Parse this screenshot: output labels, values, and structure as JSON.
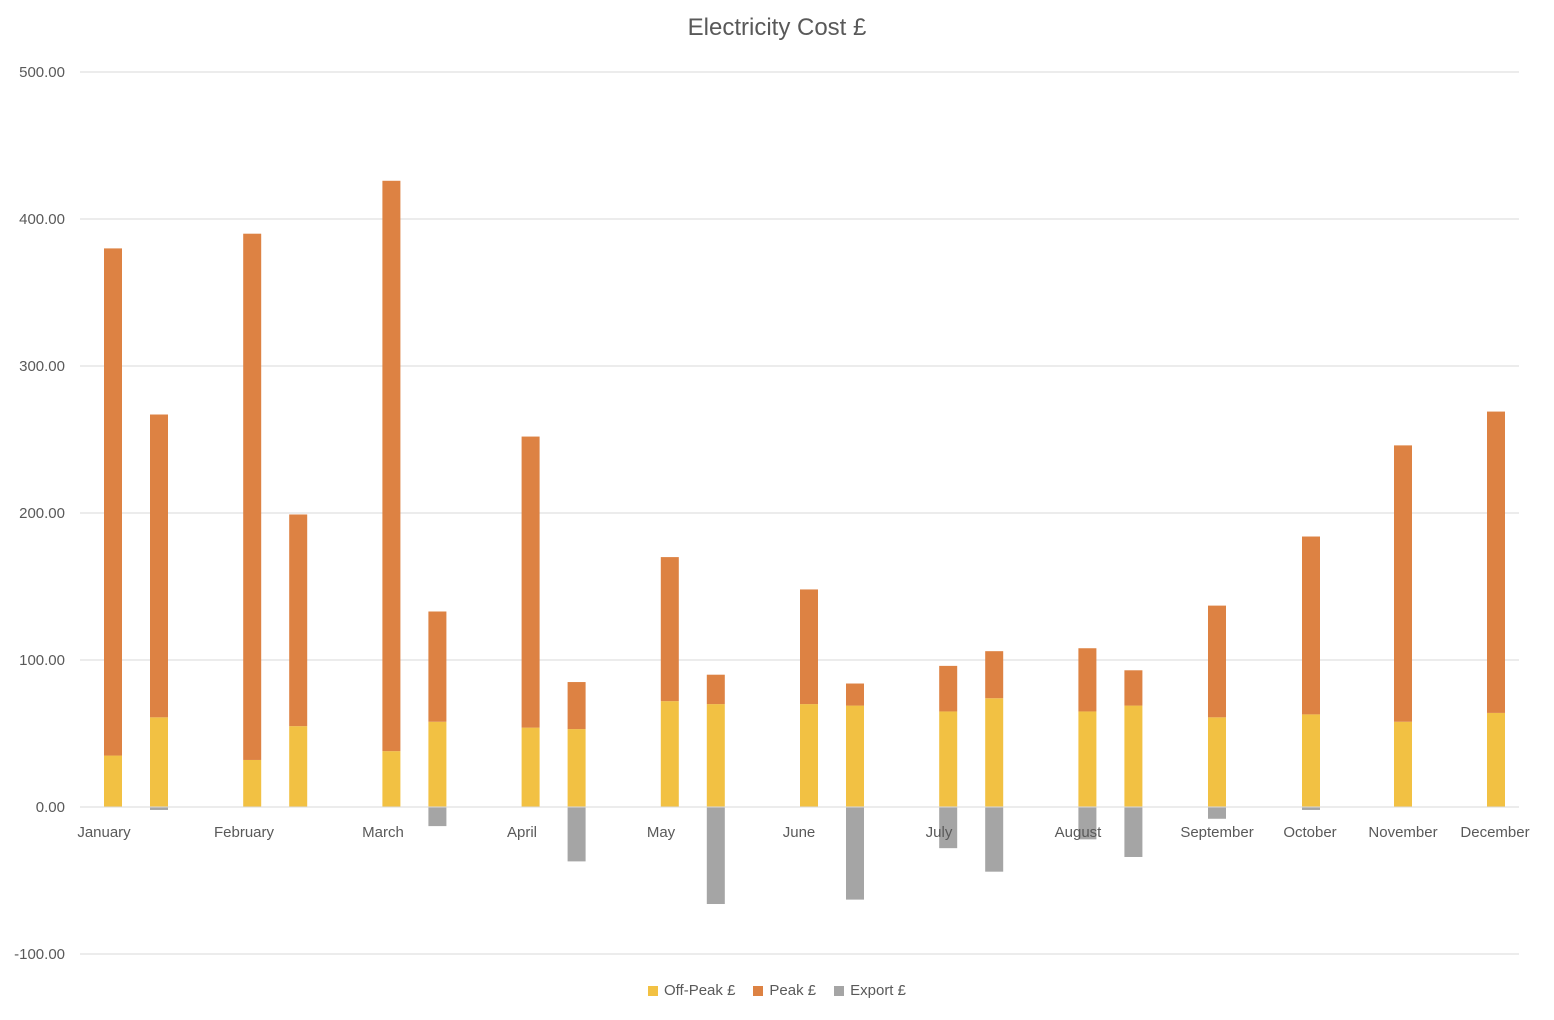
{
  "chart_data": {
    "type": "bar",
    "stacked": true,
    "title": "Electricity Cost £",
    "xlabel": "",
    "ylabel": "",
    "ylim": [
      -100,
      500
    ],
    "yticks": [
      "-100.00",
      "0.00",
      "100.00",
      "200.00",
      "300.00",
      "400.00",
      "500.00"
    ],
    "grid": true,
    "legend_position": "bottom",
    "categories": [
      "January",
      "February",
      "March",
      "April",
      "May",
      "June",
      "July",
      "August",
      "September",
      "October",
      "November",
      "December"
    ],
    "bars_per_category": 2,
    "series": [
      {
        "name": "Off-Peak £",
        "color": "#F2C143",
        "values": [
          [
            35,
            61
          ],
          [
            32,
            55
          ],
          [
            38,
            58
          ],
          [
            54,
            53
          ],
          [
            72,
            70
          ],
          [
            70,
            69
          ],
          [
            65,
            74
          ],
          [
            65,
            69
          ],
          [
            null,
            61
          ],
          [
            null,
            63
          ],
          [
            null,
            58
          ],
          [
            null,
            64
          ]
        ]
      },
      {
        "name": "Peak £",
        "color": "#DD8243",
        "values": [
          [
            345,
            206
          ],
          [
            358,
            144
          ],
          [
            388,
            75
          ],
          [
            198,
            32
          ],
          [
            98,
            20
          ],
          [
            78,
            15
          ],
          [
            31,
            32
          ],
          [
            43,
            24
          ],
          [
            null,
            76
          ],
          [
            null,
            121
          ],
          [
            null,
            188
          ],
          [
            null,
            205
          ]
        ]
      },
      {
        "name": "Export £",
        "color": "#A5A5A5",
        "values": [
          [
            0,
            -2
          ],
          [
            0,
            0
          ],
          [
            0,
            -13
          ],
          [
            0,
            -37
          ],
          [
            0,
            -66
          ],
          [
            0,
            -63
          ],
          [
            -28,
            -44
          ],
          [
            -22,
            -34
          ],
          [
            null,
            -8
          ],
          [
            null,
            -2
          ],
          [
            null,
            0
          ],
          [
            null,
            0
          ]
        ]
      }
    ]
  }
}
